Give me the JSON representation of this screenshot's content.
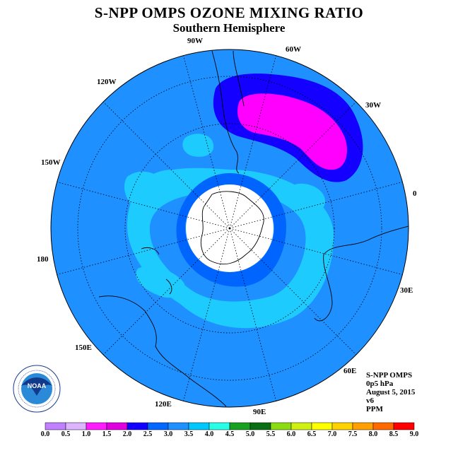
{
  "title": "S-NPP OMPS OZONE MIXING RATIO",
  "subtitle": "Southern Hemisphere",
  "longitude_labels": [
    "90W",
    "60W",
    "120W",
    "30W",
    "150W",
    "0",
    "180",
    "30E",
    "150E",
    "60E",
    "120E",
    "90E"
  ],
  "info": {
    "instrument": "S-NPP OMPS",
    "level": "0p5 hPa",
    "date": "August 5, 2015",
    "version": "v6",
    "units": "PPM"
  },
  "logo_text": "NOAA",
  "colorbar": {
    "labels": [
      "0.0",
      "0.5",
      "1.0",
      "1.5",
      "2.0",
      "2.5",
      "3.0",
      "3.5",
      "4.0",
      "4.5",
      "5.0",
      "5.5",
      "6.0",
      "6.5",
      "7.0",
      "7.5",
      "8.0",
      "8.5",
      "9.0"
    ],
    "colors": [
      "#c080ff",
      "#dcb4ff",
      "#ff1cff",
      "#e000e0",
      "#1400ff",
      "#0068ff",
      "#1e90ff",
      "#00c8ff",
      "#28ffe6",
      "#18a020",
      "#0a6e14",
      "#8cdc14",
      "#d0f014",
      "#ffff00",
      "#ffd200",
      "#ffa000",
      "#ff6a00",
      "#ff0000",
      "#8b5a3c"
    ]
  },
  "map_colors": {
    "base": "#1e90ff",
    "light": "#1ecbff",
    "dark": "#0064ff",
    "deep": "#1400ff",
    "max": "#ff00ff",
    "pole": "#ffffff"
  }
}
